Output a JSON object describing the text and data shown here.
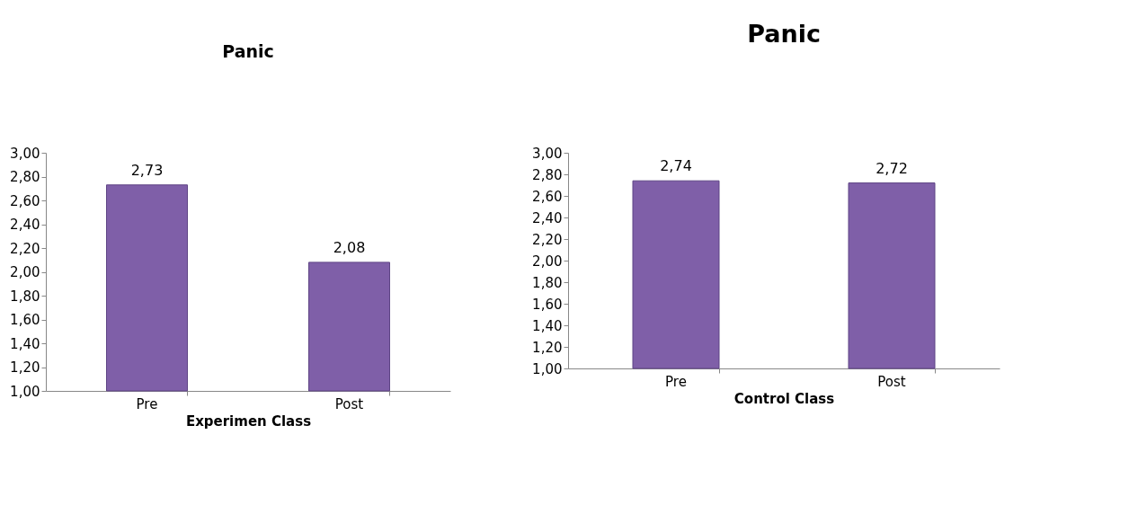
{
  "chart_data": [
    {
      "type": "bar",
      "title": "Panic",
      "xlabel": "Experimen Class",
      "categories": [
        "Pre",
        "Post"
      ],
      "values": [
        2.73,
        2.08
      ],
      "color": "#7f5fa8",
      "value_labels": [
        "2,73",
        "2,08"
      ],
      "ylim": [
        1,
        3
      ],
      "yticks": [
        {
          "value": 1,
          "label": "1,00"
        },
        {
          "value": 1.2,
          "label": "1,20"
        },
        {
          "value": 1.4,
          "label": "1,40"
        },
        {
          "value": 1.6,
          "label": "1,60"
        },
        {
          "value": 1.8,
          "label": "1,80"
        },
        {
          "value": 2,
          "label": "2,00"
        },
        {
          "value": 2.2,
          "label": "2,20"
        },
        {
          "value": 2.4,
          "label": "2,40"
        },
        {
          "value": 2.6,
          "label": "2,60"
        },
        {
          "value": 2.8,
          "label": "2,80"
        },
        {
          "value": 3,
          "label": "3,00"
        }
      ],
      "grid": false
    },
    {
      "type": "bar",
      "title": "Panic",
      "xlabel": "Control Class",
      "categories": [
        "Pre",
        "Post"
      ],
      "values": [
        2.74,
        2.72
      ],
      "color": "#7f5fa8",
      "value_labels": [
        "2,74",
        "2,72"
      ],
      "ylim": [
        1,
        3
      ],
      "yticks": [
        {
          "value": 1,
          "label": "1,00"
        },
        {
          "value": 1.2,
          "label": "1,20"
        },
        {
          "value": 1.4,
          "label": "1,40"
        },
        {
          "value": 1.6,
          "label": "1,60"
        },
        {
          "value": 1.8,
          "label": "1,80"
        },
        {
          "value": 2,
          "label": "2,00"
        },
        {
          "value": 2.2,
          "label": "2,20"
        },
        {
          "value": 2.4,
          "label": "2,40"
        },
        {
          "value": 2.6,
          "label": "2,60"
        },
        {
          "value": 2.8,
          "label": "2,80"
        },
        {
          "value": 3,
          "label": "3,00"
        }
      ],
      "grid": false
    }
  ]
}
